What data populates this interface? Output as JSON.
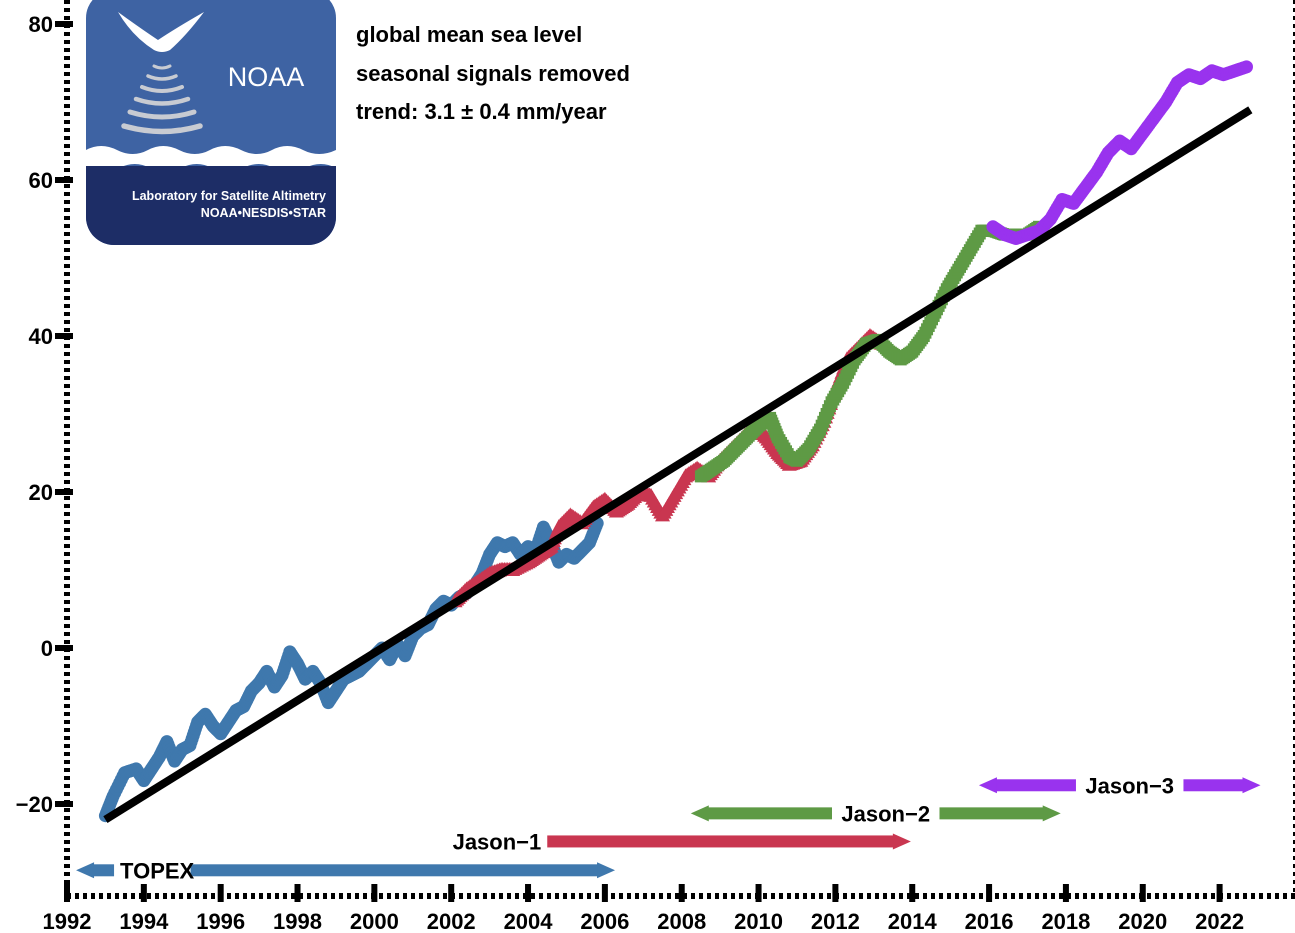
{
  "chart_data": {
    "type": "scatter",
    "title": "",
    "xlabel": "",
    "ylabel": "",
    "xlim": [
      1992,
      2022.9
    ],
    "ylim": [
      -30,
      82
    ],
    "x_ticks": [
      "1992",
      "1994",
      "1996",
      "1998",
      "2000",
      "2002",
      "2004",
      "2006",
      "2008",
      "2010",
      "2012",
      "2014",
      "2016",
      "2018",
      "2020",
      "2022"
    ],
    "x_tick_values": [
      1992,
      1994,
      1996,
      1998,
      2000,
      2002,
      2004,
      2006,
      2008,
      2010,
      2012,
      2014,
      2016,
      2018,
      2020,
      2022
    ],
    "y_ticks": [
      "80",
      "60",
      "40",
      "20",
      "0",
      "−20"
    ],
    "y_tick_values": [
      80,
      60,
      40,
      20,
      0,
      -20
    ],
    "annotations": {
      "line1": "global mean sea level",
      "line2": "seasonal signals removed",
      "line3": "trend:  3.1 ± 0.4 mm/year"
    },
    "trend": {
      "x": [
        1993.0,
        2022.8
      ],
      "y": [
        -22.0,
        69.0
      ],
      "color": "#000000"
    },
    "series": [
      {
        "name": "TOPEX",
        "marker": "circle",
        "color": "#3f78ad",
        "span": [
          1992.6,
          2005.9
        ],
        "points": [
          [
            1993.0,
            -21.5
          ],
          [
            1993.2,
            -19
          ],
          [
            1993.5,
            -16
          ],
          [
            1993.8,
            -15.5
          ],
          [
            1994.0,
            -17
          ],
          [
            1994.2,
            -15.5
          ],
          [
            1994.4,
            -14
          ],
          [
            1994.6,
            -12
          ],
          [
            1994.8,
            -14.5
          ],
          [
            1995.0,
            -13
          ],
          [
            1995.2,
            -12.5
          ],
          [
            1995.4,
            -9.5
          ],
          [
            1995.6,
            -8.5
          ],
          [
            1995.8,
            -10
          ],
          [
            1996.0,
            -11
          ],
          [
            1996.2,
            -9.5
          ],
          [
            1996.4,
            -8
          ],
          [
            1996.6,
            -7.5
          ],
          [
            1996.8,
            -5.5
          ],
          [
            1997.0,
            -4.5
          ],
          [
            1997.2,
            -3
          ],
          [
            1997.4,
            -5
          ],
          [
            1997.6,
            -3.5
          ],
          [
            1997.8,
            -0.5
          ],
          [
            1998.0,
            -2
          ],
          [
            1998.2,
            -4
          ],
          [
            1998.4,
            -3
          ],
          [
            1998.6,
            -4.5
          ],
          [
            1998.8,
            -7
          ],
          [
            1999.0,
            -5.5
          ],
          [
            1999.2,
            -4
          ],
          [
            1999.4,
            -3.5
          ],
          [
            1999.6,
            -3
          ],
          [
            1999.8,
            -2
          ],
          [
            2000.0,
            -1
          ],
          [
            2000.2,
            0
          ],
          [
            2000.4,
            -1.5
          ],
          [
            2000.6,
            0.5
          ],
          [
            2000.8,
            -1
          ],
          [
            2001.0,
            1.5
          ],
          [
            2001.2,
            2.5
          ],
          [
            2001.4,
            3
          ],
          [
            2001.6,
            5
          ],
          [
            2001.8,
            6
          ],
          [
            2002.0,
            5.5
          ],
          [
            2002.2,
            6.5
          ],
          [
            2002.4,
            7
          ],
          [
            2002.6,
            8
          ],
          [
            2002.8,
            9.5
          ],
          [
            2003.0,
            12
          ],
          [
            2003.2,
            13.5
          ],
          [
            2003.4,
            13
          ],
          [
            2003.6,
            13.5
          ],
          [
            2003.8,
            12
          ],
          [
            2004.0,
            13
          ],
          [
            2004.2,
            12.5
          ],
          [
            2004.4,
            15.5
          ],
          [
            2004.6,
            13.5
          ],
          [
            2004.8,
            11
          ],
          [
            2005.0,
            12
          ],
          [
            2005.2,
            11.5
          ],
          [
            2005.4,
            12.5
          ],
          [
            2005.6,
            13.5
          ],
          [
            2005.8,
            16
          ]
        ]
      },
      {
        "name": "Jason−1",
        "marker": "triangle",
        "color": "#c93650",
        "span": [
          2004.5,
          2013.6
        ],
        "points": [
          [
            2002.1,
            6
          ],
          [
            2002.4,
            7.5
          ],
          [
            2002.7,
            8.5
          ],
          [
            2003.0,
            9.5
          ],
          [
            2003.3,
            10
          ],
          [
            2003.6,
            10
          ],
          [
            2004.0,
            11
          ],
          [
            2004.3,
            12
          ],
          [
            2004.6,
            13
          ],
          [
            2004.8,
            15.5
          ],
          [
            2005.1,
            17
          ],
          [
            2005.4,
            16
          ],
          [
            2005.7,
            18
          ],
          [
            2006.0,
            19
          ],
          [
            2006.3,
            17.5
          ],
          [
            2006.6,
            18.5
          ],
          [
            2006.9,
            20
          ],
          [
            2007.2,
            19.5
          ],
          [
            2007.5,
            17
          ],
          [
            2007.8,
            19.5
          ],
          [
            2008.1,
            22
          ],
          [
            2008.4,
            23
          ],
          [
            2008.7,
            22
          ],
          [
            2009.0,
            24
          ],
          [
            2009.3,
            25.5
          ],
          [
            2009.6,
            27
          ],
          [
            2009.9,
            28.5
          ],
          [
            2010.2,
            27
          ],
          [
            2010.5,
            25
          ],
          [
            2010.8,
            23.5
          ],
          [
            2011.1,
            24
          ],
          [
            2011.4,
            26
          ],
          [
            2011.7,
            29
          ],
          [
            2012.0,
            33
          ],
          [
            2012.3,
            37
          ],
          [
            2012.6,
            38.5
          ],
          [
            2012.9,
            40
          ],
          [
            2013.2,
            39
          ]
        ]
      },
      {
        "name": "Jason−2",
        "marker": "square",
        "color": "#5e9a45",
        "span": [
          2008.6,
          2017.5
        ],
        "points": [
          [
            2008.5,
            22
          ],
          [
            2008.8,
            23
          ],
          [
            2009.1,
            24
          ],
          [
            2009.4,
            25.5
          ],
          [
            2009.7,
            27
          ],
          [
            2010.0,
            28.5
          ],
          [
            2010.3,
            29.5
          ],
          [
            2010.5,
            27
          ],
          [
            2010.8,
            24.5
          ],
          [
            2011.0,
            24
          ],
          [
            2011.3,
            25.5
          ],
          [
            2011.6,
            28
          ],
          [
            2011.9,
            31.5
          ],
          [
            2012.2,
            34
          ],
          [
            2012.5,
            37
          ],
          [
            2012.8,
            39
          ],
          [
            2013.1,
            39.5
          ],
          [
            2013.4,
            38
          ],
          [
            2013.7,
            37
          ],
          [
            2014.0,
            38
          ],
          [
            2014.3,
            40
          ],
          [
            2014.6,
            43
          ],
          [
            2014.9,
            46
          ],
          [
            2015.2,
            48.5
          ],
          [
            2015.5,
            51
          ],
          [
            2015.8,
            53.5
          ],
          [
            2016.1,
            53.5
          ],
          [
            2016.4,
            53
          ],
          [
            2016.7,
            53
          ],
          [
            2017.0,
            53
          ],
          [
            2017.3,
            54
          ]
        ]
      },
      {
        "name": "Jason−3",
        "marker": "circle",
        "color": "#9933ee",
        "span": [
          2016.1,
          2022.7
        ],
        "points": [
          [
            2016.1,
            54
          ],
          [
            2016.4,
            53
          ],
          [
            2016.7,
            52.5
          ],
          [
            2017.0,
            53
          ],
          [
            2017.3,
            53.5
          ],
          [
            2017.6,
            55
          ],
          [
            2017.9,
            57.5
          ],
          [
            2018.2,
            57
          ],
          [
            2018.5,
            59
          ],
          [
            2018.8,
            61
          ],
          [
            2019.1,
            63.5
          ],
          [
            2019.4,
            65
          ],
          [
            2019.7,
            64
          ],
          [
            2020.0,
            66
          ],
          [
            2020.3,
            68
          ],
          [
            2020.6,
            70
          ],
          [
            2020.9,
            72.5
          ],
          [
            2021.2,
            73.5
          ],
          [
            2021.5,
            73
          ],
          [
            2021.8,
            74
          ],
          [
            2022.1,
            73.5
          ],
          [
            2022.4,
            74
          ],
          [
            2022.7,
            74.5
          ]
        ]
      }
    ]
  },
  "logo": {
    "name": "NOAA",
    "subtitle_line1": "Laboratory for Satellite Altimetry",
    "subtitle_line2": "NOAA•NESDIS•STAR",
    "bg_color": "#3e63a3",
    "bottom_color": "#1d2d66"
  }
}
